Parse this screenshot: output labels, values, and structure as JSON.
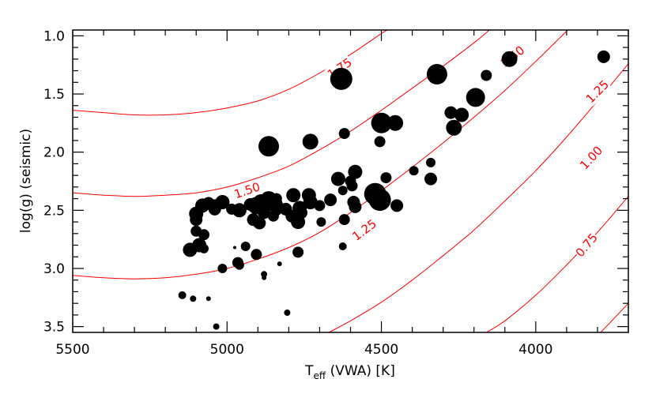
{
  "chart_data": {
    "type": "scatter",
    "title": "",
    "xlabel": "T_eff (VWA) [K]",
    "xlabel_main": "T",
    "xlabel_sub": "eff",
    "xlabel_rest": " (VWA) [K]",
    "ylabel": "log(g) (seismic)",
    "xlim": [
      5500,
      3700
    ],
    "ylim": [
      3.55,
      0.95
    ],
    "x_reversed": true,
    "y_reversed": true,
    "x_ticks": [
      5500,
      5000,
      4500,
      4000
    ],
    "x_tick_labels": [
      "5500",
      "5000",
      "4500",
      "4000"
    ],
    "y_ticks": [
      1.0,
      1.5,
      2.0,
      2.5,
      3.0,
      3.5
    ],
    "y_tick_labels": [
      "1.0",
      "1.5",
      "2.0",
      "2.5",
      "3.0",
      "3.5"
    ],
    "grid": false,
    "colors": {
      "points": "#000000",
      "contours": "#ff0000",
      "axes": "#000000"
    },
    "contours": [
      {
        "label": "1.75",
        "points": [
          [
            5500,
            1.64
          ],
          [
            5400,
            1.66
          ],
          [
            5300,
            1.68
          ],
          [
            5200,
            1.68
          ],
          [
            5100,
            1.66
          ],
          [
            5000,
            1.62
          ],
          [
            4900,
            1.56
          ],
          [
            4800,
            1.46
          ],
          [
            4700,
            1.32
          ],
          [
            4600,
            1.16
          ],
          [
            4500,
            0.98
          ],
          [
            4480,
            0.95
          ]
        ]
      },
      {
        "label": "1.50",
        "points": [
          [
            5500,
            2.35
          ],
          [
            5400,
            2.37
          ],
          [
            5300,
            2.38
          ],
          [
            5200,
            2.37
          ],
          [
            5100,
            2.35
          ],
          [
            5000,
            2.3
          ],
          [
            4900,
            2.22
          ],
          [
            4800,
            2.12
          ],
          [
            4700,
            1.98
          ],
          [
            4600,
            1.82
          ],
          [
            4500,
            1.64
          ],
          [
            4400,
            1.45
          ],
          [
            4300,
            1.26
          ],
          [
            4200,
            1.06
          ],
          [
            4150,
            0.95
          ]
        ]
      },
      {
        "label": "1.25",
        "points": [
          [
            5500,
            3.06
          ],
          [
            5400,
            3.08
          ],
          [
            5300,
            3.09
          ],
          [
            5200,
            3.08
          ],
          [
            5100,
            3.05
          ],
          [
            5000,
            3.0
          ],
          [
            4900,
            2.92
          ],
          [
            4800,
            2.82
          ],
          [
            4700,
            2.69
          ],
          [
            4600,
            2.52
          ],
          [
            4500,
            2.33
          ],
          [
            4400,
            2.13
          ],
          [
            4300,
            1.92
          ],
          [
            4200,
            1.7
          ],
          [
            4100,
            1.47
          ],
          [
            4000,
            1.22
          ],
          [
            3900,
            0.96
          ],
          [
            3897,
            0.95
          ]
        ]
      },
      {
        "label": "1.00",
        "points": [
          [
            4670,
            3.55
          ],
          [
            4600,
            3.45
          ],
          [
            4500,
            3.29
          ],
          [
            4400,
            3.1
          ],
          [
            4300,
            2.89
          ],
          [
            4200,
            2.67
          ],
          [
            4100,
            2.42
          ],
          [
            4000,
            2.16
          ],
          [
            3900,
            1.87
          ],
          [
            3800,
            1.56
          ],
          [
            3700,
            1.24
          ]
        ]
      },
      {
        "label": "0.75",
        "points": [
          [
            4160,
            3.55
          ],
          [
            4100,
            3.45
          ],
          [
            4000,
            3.23
          ],
          [
            3900,
            2.97
          ],
          [
            3800,
            2.69
          ],
          [
            3700,
            2.38
          ]
        ]
      },
      {
        "label": "",
        "points": [
          [
            3790,
            3.55
          ],
          [
            3750,
            3.44
          ],
          [
            3700,
            3.3
          ]
        ]
      }
    ],
    "contour_labels": [
      {
        "text": "1.75",
        "x": 4635,
        "y": 1.28,
        "angle": -34
      },
      {
        "text": "1.50",
        "x": 4075,
        "y": 1.18,
        "angle": -38
      },
      {
        "text": "1.50",
        "x": 4935,
        "y": 2.33,
        "angle": -19
      },
      {
        "text": "1.25",
        "x": 3800,
        "y": 1.48,
        "angle": -45
      },
      {
        "text": "1.25",
        "x": 4555,
        "y": 2.67,
        "angle": -37
      },
      {
        "text": "1.00",
        "x": 3820,
        "y": 2.05,
        "angle": -47
      },
      {
        "text": "0.75",
        "x": 3835,
        "y": 2.8,
        "angle": -50
      }
    ],
    "series": [
      {
        "points": [
          {
            "x": 4630,
            "y": 1.37,
            "s": 14
          },
          {
            "x": 4320,
            "y": 1.33,
            "s": 13
          },
          {
            "x": 4085,
            "y": 1.2,
            "s": 10
          },
          {
            "x": 3780,
            "y": 1.18,
            "s": 8
          },
          {
            "x": 4160,
            "y": 1.34,
            "s": 7
          },
          {
            "x": 4195,
            "y": 1.53,
            "s": 12
          },
          {
            "x": 4275,
            "y": 1.66,
            "s": 8
          },
          {
            "x": 4240,
            "y": 1.68,
            "s": 9
          },
          {
            "x": 4265,
            "y": 1.79,
            "s": 10
          },
          {
            "x": 4500,
            "y": 1.75,
            "s": 13
          },
          {
            "x": 4455,
            "y": 1.75,
            "s": 10
          },
          {
            "x": 4865,
            "y": 1.95,
            "s": 13
          },
          {
            "x": 4730,
            "y": 1.91,
            "s": 10
          },
          {
            "x": 4620,
            "y": 1.84,
            "s": 7
          },
          {
            "x": 4505,
            "y": 1.91,
            "s": 7
          },
          {
            "x": 4340,
            "y": 2.09,
            "s": 6
          },
          {
            "x": 4395,
            "y": 2.16,
            "s": 6
          },
          {
            "x": 4585,
            "y": 2.17,
            "s": 9
          },
          {
            "x": 4485,
            "y": 2.22,
            "s": 7
          },
          {
            "x": 4340,
            "y": 2.23,
            "s": 8
          },
          {
            "x": 4640,
            "y": 2.23,
            "s": 9
          },
          {
            "x": 4600,
            "y": 2.25,
            "s": 7
          },
          {
            "x": 4595,
            "y": 2.29,
            "s": 7
          },
          {
            "x": 4520,
            "y": 2.36,
            "s": 14
          },
          {
            "x": 4505,
            "y": 2.41,
            "s": 14
          },
          {
            "x": 4625,
            "y": 2.33,
            "s": 6
          },
          {
            "x": 4665,
            "y": 2.41,
            "s": 8
          },
          {
            "x": 4450,
            "y": 2.46,
            "s": 8
          },
          {
            "x": 4590,
            "y": 2.43,
            "s": 8
          },
          {
            "x": 4620,
            "y": 2.58,
            "s": 7
          },
          {
            "x": 4585,
            "y": 2.47,
            "s": 8
          },
          {
            "x": 4735,
            "y": 2.37,
            "s": 9
          },
          {
            "x": 4785,
            "y": 2.37,
            "s": 9
          },
          {
            "x": 4840,
            "y": 2.4,
            "s": 7
          },
          {
            "x": 4865,
            "y": 2.41,
            "s": 11
          },
          {
            "x": 4890,
            "y": 2.43,
            "s": 10
          },
          {
            "x": 4845,
            "y": 2.45,
            "s": 10
          },
          {
            "x": 4905,
            "y": 2.46,
            "s": 11
          },
          {
            "x": 4925,
            "y": 2.45,
            "s": 8
          },
          {
            "x": 4765,
            "y": 2.48,
            "s": 9
          },
          {
            "x": 4730,
            "y": 2.43,
            "s": 9
          },
          {
            "x": 4700,
            "y": 2.46,
            "s": 7
          },
          {
            "x": 4810,
            "y": 2.49,
            "s": 8
          },
          {
            "x": 4760,
            "y": 2.52,
            "s": 8
          },
          {
            "x": 4790,
            "y": 2.55,
            "s": 8
          },
          {
            "x": 4840,
            "y": 2.5,
            "s": 7
          },
          {
            "x": 4880,
            "y": 2.52,
            "s": 8
          },
          {
            "x": 4915,
            "y": 2.58,
            "s": 8
          },
          {
            "x": 4895,
            "y": 2.61,
            "s": 8
          },
          {
            "x": 4850,
            "y": 2.55,
            "s": 7
          },
          {
            "x": 4770,
            "y": 2.6,
            "s": 9
          },
          {
            "x": 4695,
            "y": 2.6,
            "s": 6
          },
          {
            "x": 4960,
            "y": 2.5,
            "s": 9
          },
          {
            "x": 4985,
            "y": 2.49,
            "s": 7
          },
          {
            "x": 5015,
            "y": 2.43,
            "s": 9
          },
          {
            "x": 5040,
            "y": 2.46,
            "s": 8
          },
          {
            "x": 5060,
            "y": 2.44,
            "s": 8
          },
          {
            "x": 5080,
            "y": 2.46,
            "s": 9
          },
          {
            "x": 5040,
            "y": 2.49,
            "s": 8
          },
          {
            "x": 5100,
            "y": 2.53,
            "s": 9
          },
          {
            "x": 5100,
            "y": 2.58,
            "s": 8
          },
          {
            "x": 5075,
            "y": 2.71,
            "s": 7
          },
          {
            "x": 5120,
            "y": 2.84,
            "s": 9
          },
          {
            "x": 5090,
            "y": 2.8,
            "s": 9
          },
          {
            "x": 5100,
            "y": 2.68,
            "s": 7
          },
          {
            "x": 5075,
            "y": 2.83,
            "s": 6
          },
          {
            "x": 4975,
            "y": 2.82,
            "s": 2
          },
          {
            "x": 4940,
            "y": 2.81,
            "s": 6
          },
          {
            "x": 4905,
            "y": 2.88,
            "s": 7
          },
          {
            "x": 4965,
            "y": 2.95,
            "s": 7
          },
          {
            "x": 4960,
            "y": 2.97,
            "s": 6
          },
          {
            "x": 5015,
            "y": 3.0,
            "s": 6
          },
          {
            "x": 4770,
            "y": 2.86,
            "s": 7
          },
          {
            "x": 4625,
            "y": 2.81,
            "s": 5
          },
          {
            "x": 4880,
            "y": 3.05,
            "s": 4
          },
          {
            "x": 4880,
            "y": 3.08,
            "s": 3
          },
          {
            "x": 4830,
            "y": 2.96,
            "s": 3
          },
          {
            "x": 5145,
            "y": 3.23,
            "s": 5
          },
          {
            "x": 5110,
            "y": 3.26,
            "s": 4
          },
          {
            "x": 5060,
            "y": 3.26,
            "s": 3
          },
          {
            "x": 4805,
            "y": 3.38,
            "s": 4
          },
          {
            "x": 5035,
            "y": 3.5,
            "s": 4
          }
        ]
      }
    ]
  }
}
